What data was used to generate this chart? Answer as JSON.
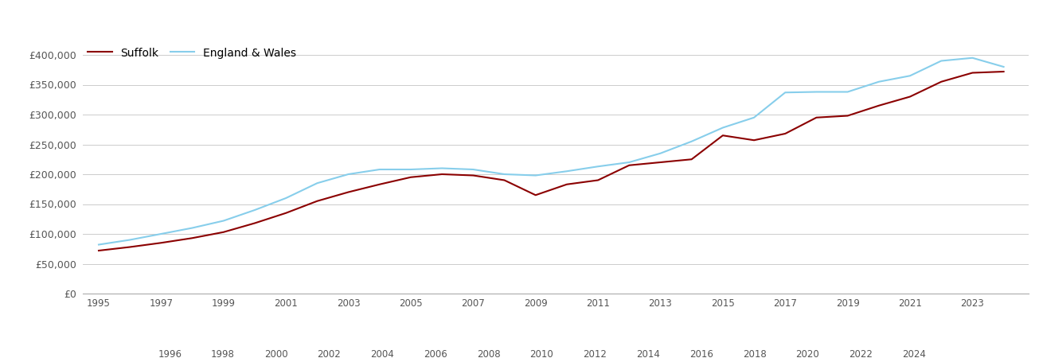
{
  "suffolk": {
    "years": [
      1995,
      1996,
      1997,
      1998,
      1999,
      2000,
      2001,
      2002,
      2003,
      2004,
      2005,
      2006,
      2007,
      2008,
      2009,
      2010,
      2011,
      2012,
      2013,
      2014,
      2015,
      2016,
      2017,
      2018,
      2019,
      2020,
      2021,
      2022,
      2023,
      2024
    ],
    "values": [
      72000,
      78000,
      85000,
      93000,
      103000,
      118000,
      135000,
      155000,
      170000,
      183000,
      195000,
      200000,
      198000,
      190000,
      165000,
      183000,
      190000,
      215000,
      220000,
      225000,
      265000,
      257000,
      268000,
      295000,
      298000,
      315000,
      330000,
      355000,
      370000,
      372000
    ]
  },
  "england_wales": {
    "years": [
      1995,
      1996,
      1997,
      1998,
      1999,
      2000,
      2001,
      2002,
      2003,
      2004,
      2005,
      2006,
      2007,
      2008,
      2009,
      2010,
      2011,
      2012,
      2013,
      2014,
      2015,
      2016,
      2017,
      2018,
      2019,
      2020,
      2021,
      2022,
      2023,
      2024
    ],
    "values": [
      82000,
      90000,
      100000,
      110000,
      122000,
      140000,
      160000,
      185000,
      200000,
      208000,
      208000,
      210000,
      208000,
      200000,
      198000,
      205000,
      213000,
      220000,
      235000,
      255000,
      278000,
      295000,
      337000,
      338000,
      338000,
      355000,
      365000,
      390000,
      395000,
      380000
    ]
  },
  "suffolk_color": "#8B0000",
  "england_wales_color": "#87CEEB",
  "background_color": "#ffffff",
  "grid_color": "#cccccc",
  "ylim": [
    0,
    420000
  ],
  "yticks": [
    0,
    50000,
    100000,
    150000,
    200000,
    250000,
    300000,
    350000,
    400000
  ],
  "xticks_top": [
    1995,
    1997,
    1999,
    2001,
    2003,
    2005,
    2007,
    2009,
    2011,
    2013,
    2015,
    2017,
    2019,
    2021,
    2023
  ],
  "xticks_bottom": [
    1996,
    1998,
    2000,
    2002,
    2004,
    2006,
    2008,
    2010,
    2012,
    2014,
    2016,
    2018,
    2020,
    2022,
    2024
  ],
  "legend_labels": [
    "Suffolk",
    "England & Wales"
  ],
  "line_width": 1.5,
  "xlim": [
    1994.5,
    2024.8
  ]
}
